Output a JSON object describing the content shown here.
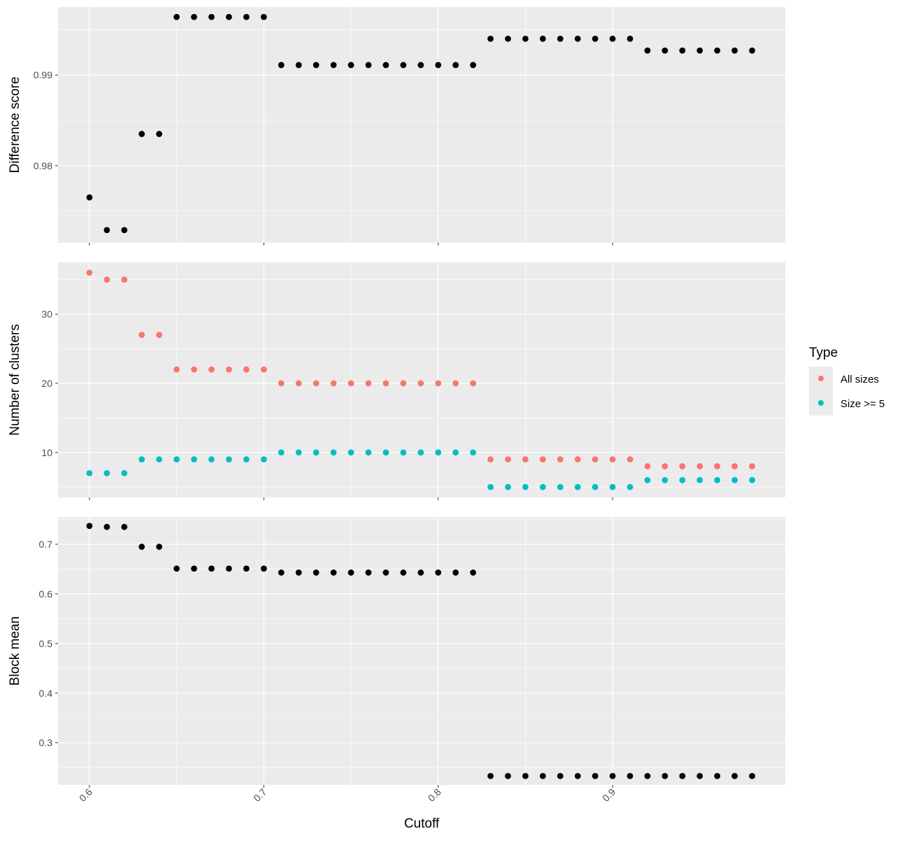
{
  "colors": {
    "panel_bg": "#ebebeb",
    "grid_major": "#ffffff",
    "black_points": "#000000",
    "all_sizes": "#f8766d",
    "size_ge_5": "#00bfc4",
    "tick_text": "#4d4d4d"
  },
  "legend": {
    "title": "Type",
    "items": [
      {
        "label": "All sizes",
        "color": "#f8766d"
      },
      {
        "label": "Size >= 5",
        "color": "#00bfc4"
      }
    ]
  },
  "shared_x": {
    "title": "Cutoff",
    "ticks": [
      0.6,
      0.7,
      0.8,
      0.9
    ],
    "tick_labels": [
      "0.6",
      "0.7",
      "0.8",
      "0.9"
    ],
    "xlim": [
      0.582,
      0.999
    ]
  },
  "chart_data": [
    {
      "type": "scatter",
      "ylabel": "Difference score",
      "ylim": [
        0.9715,
        0.9975
      ],
      "y_ticks": [
        0.98,
        0.99
      ],
      "y_tick_labels": [
        "0.98",
        "0.99"
      ],
      "x": [
        0.6,
        0.61,
        0.62,
        0.63,
        0.64,
        0.65,
        0.66,
        0.67,
        0.68,
        0.69,
        0.7,
        0.71,
        0.72,
        0.73,
        0.74,
        0.75,
        0.76,
        0.77,
        0.78,
        0.79,
        0.8,
        0.81,
        0.82,
        0.83,
        0.84,
        0.85,
        0.86,
        0.87,
        0.88,
        0.89,
        0.9,
        0.91,
        0.92,
        0.93,
        0.94,
        0.95,
        0.96,
        0.97,
        0.98
      ],
      "series": [
        {
          "color": "#000000",
          "values": [
            0.9765,
            0.9729,
            0.9729,
            0.9835,
            0.9835,
            0.9964,
            0.9964,
            0.9964,
            0.9964,
            0.9964,
            0.9964,
            0.9911,
            0.9911,
            0.9911,
            0.9911,
            0.9911,
            0.9911,
            0.9911,
            0.9911,
            0.9911,
            0.9911,
            0.9911,
            0.9911,
            0.994,
            0.994,
            0.994,
            0.994,
            0.994,
            0.994,
            0.994,
            0.994,
            0.994,
            0.9927,
            0.9927,
            0.9927,
            0.9927,
            0.9927,
            0.9927,
            0.9927
          ]
        }
      ]
    },
    {
      "type": "scatter",
      "ylabel": "Number of clusters",
      "ylim": [
        3.5,
        37.5
      ],
      "y_ticks": [
        10,
        20,
        30
      ],
      "y_tick_labels": [
        "10",
        "20",
        "30"
      ],
      "x": [
        0.6,
        0.61,
        0.62,
        0.63,
        0.64,
        0.65,
        0.66,
        0.67,
        0.68,
        0.69,
        0.7,
        0.71,
        0.72,
        0.73,
        0.74,
        0.75,
        0.76,
        0.77,
        0.78,
        0.79,
        0.8,
        0.81,
        0.82,
        0.83,
        0.84,
        0.85,
        0.86,
        0.87,
        0.88,
        0.89,
        0.9,
        0.91,
        0.92,
        0.93,
        0.94,
        0.95,
        0.96,
        0.97,
        0.98
      ],
      "series": [
        {
          "name": "All sizes",
          "color": "#f8766d",
          "values": [
            36,
            35,
            35,
            27,
            27,
            22,
            22,
            22,
            22,
            22,
            22,
            20,
            20,
            20,
            20,
            20,
            20,
            20,
            20,
            20,
            20,
            20,
            20,
            9,
            9,
            9,
            9,
            9,
            9,
            9,
            9,
            9,
            8,
            8,
            8,
            8,
            8,
            8,
            8
          ]
        },
        {
          "name": "Size >= 5",
          "color": "#00bfc4",
          "values": [
            7,
            7,
            7,
            9,
            9,
            9,
            9,
            9,
            9,
            9,
            9,
            10,
            10,
            10,
            10,
            10,
            10,
            10,
            10,
            10,
            10,
            10,
            10,
            5,
            5,
            5,
            5,
            5,
            5,
            5,
            5,
            5,
            6,
            6,
            6,
            6,
            6,
            6,
            6
          ]
        }
      ]
    },
    {
      "type": "scatter",
      "ylabel": "Block mean",
      "ylim": [
        0.215,
        0.755
      ],
      "y_ticks": [
        0.3,
        0.4,
        0.5,
        0.6,
        0.7
      ],
      "y_tick_labels": [
        "0.3",
        "0.4",
        "0.5",
        "0.6",
        "0.7"
      ],
      "x": [
        0.6,
        0.61,
        0.62,
        0.63,
        0.64,
        0.65,
        0.66,
        0.67,
        0.68,
        0.69,
        0.7,
        0.71,
        0.72,
        0.73,
        0.74,
        0.75,
        0.76,
        0.77,
        0.78,
        0.79,
        0.8,
        0.81,
        0.82,
        0.83,
        0.84,
        0.85,
        0.86,
        0.87,
        0.88,
        0.89,
        0.9,
        0.91,
        0.92,
        0.93,
        0.94,
        0.95,
        0.96,
        0.97,
        0.98
      ],
      "series": [
        {
          "color": "#000000",
          "values": [
            0.737,
            0.735,
            0.735,
            0.695,
            0.695,
            0.651,
            0.651,
            0.651,
            0.651,
            0.651,
            0.651,
            0.643,
            0.643,
            0.643,
            0.643,
            0.643,
            0.643,
            0.643,
            0.643,
            0.643,
            0.643,
            0.643,
            0.643,
            0.233,
            0.233,
            0.233,
            0.233,
            0.233,
            0.233,
            0.233,
            0.233,
            0.233,
            0.233,
            0.233,
            0.233,
            0.233,
            0.233,
            0.233,
            0.233
          ]
        }
      ]
    }
  ]
}
